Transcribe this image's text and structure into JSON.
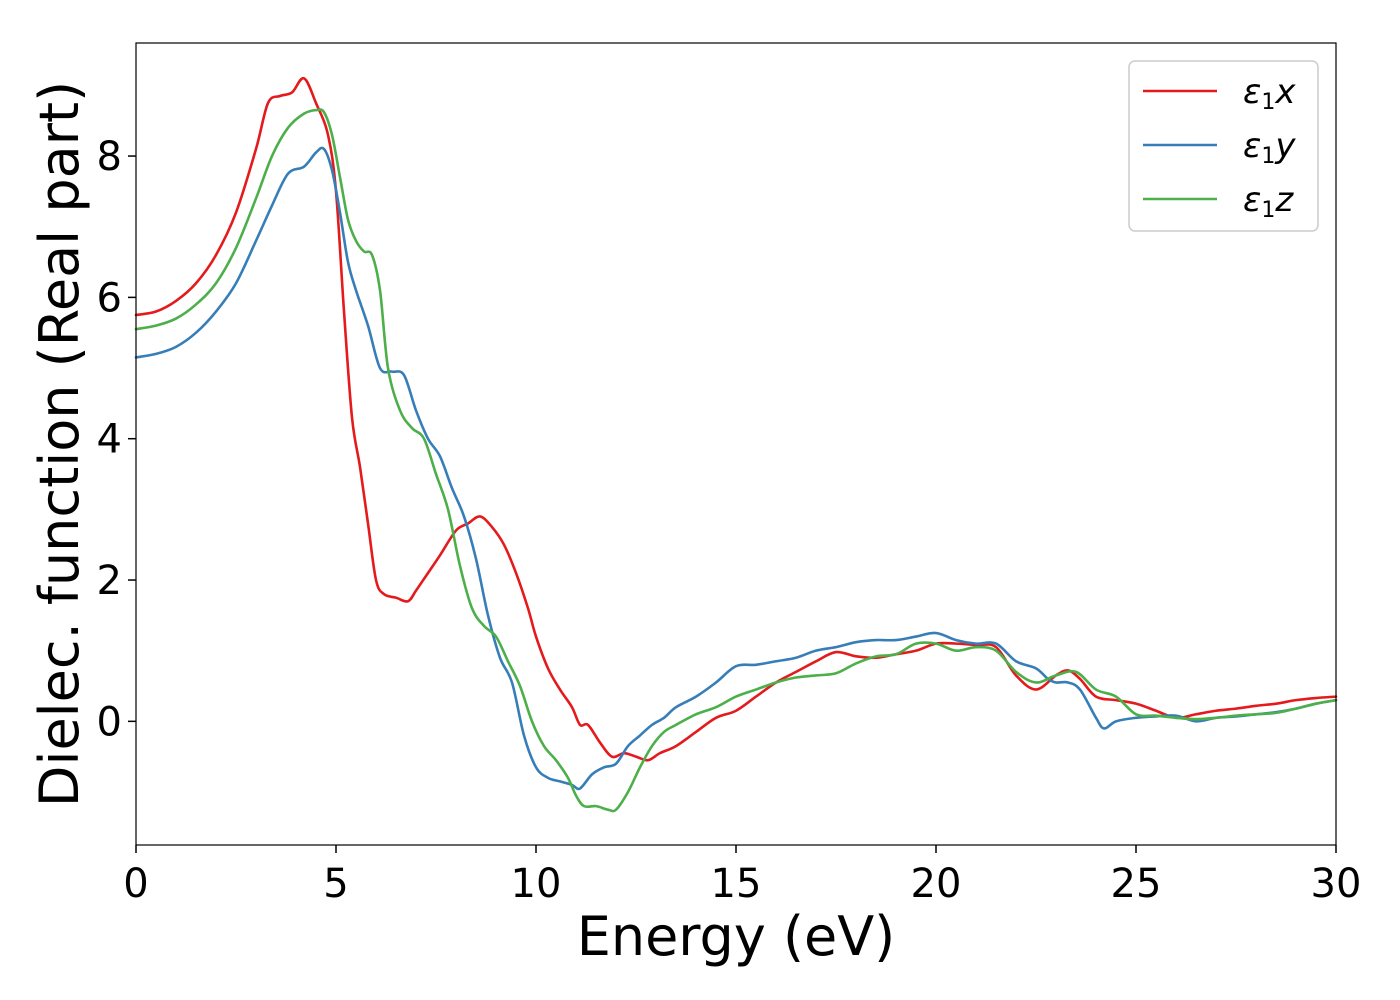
{
  "chart_data": {
    "type": "line",
    "xlabel": "Energy (eV)",
    "ylabel": "Dielec. function (Real part)",
    "xlim": [
      0,
      30
    ],
    "ylim": [
      -1.75,
      9.6
    ],
    "xticks": [
      0,
      5,
      10,
      15,
      20,
      25,
      30
    ],
    "yticks": [
      0,
      2,
      4,
      6,
      8
    ],
    "grid": false,
    "legend_position": "top-right",
    "series": [
      {
        "name": "ε1x",
        "legend_base": "ε",
        "legend_sub": "1",
        "legend_suffix": "x",
        "color": "#e41a1c",
        "x": [
          0,
          0.5,
          1,
          1.5,
          2,
          2.5,
          3,
          3.3,
          3.6,
          3.9,
          4.2,
          4.5,
          4.8,
          5.0,
          5.2,
          5.4,
          5.6,
          5.8,
          6.0,
          6.2,
          6.5,
          6.8,
          7.0,
          7.3,
          7.6,
          8.0,
          8.3,
          8.6,
          8.9,
          9.2,
          9.5,
          9.8,
          10.0,
          10.3,
          10.6,
          10.9,
          11.1,
          11.3,
          11.6,
          11.9,
          12.2,
          12.5,
          12.8,
          13.1,
          13.5,
          14.0,
          14.5,
          15.0,
          15.5,
          16.0,
          16.5,
          17.0,
          17.5,
          18.0,
          18.5,
          19.0,
          19.5,
          20.0,
          20.5,
          21.0,
          21.5,
          22.0,
          22.5,
          23.0,
          23.3,
          23.6,
          24.0,
          24.5,
          25.0,
          25.5,
          26.0,
          26.5,
          27.0,
          27.5,
          28.0,
          28.5,
          29.0,
          29.5,
          30.0
        ],
        "y": [
          5.75,
          5.8,
          5.95,
          6.2,
          6.6,
          7.2,
          8.1,
          8.75,
          8.85,
          8.9,
          9.1,
          8.75,
          8.3,
          7.5,
          5.8,
          4.3,
          3.6,
          2.8,
          2.0,
          1.8,
          1.75,
          1.7,
          1.85,
          2.1,
          2.35,
          2.7,
          2.8,
          2.9,
          2.75,
          2.5,
          2.1,
          1.6,
          1.2,
          0.75,
          0.45,
          0.2,
          -0.05,
          -0.05,
          -0.3,
          -0.5,
          -0.45,
          -0.5,
          -0.55,
          -0.45,
          -0.35,
          -0.15,
          0.05,
          0.15,
          0.35,
          0.55,
          0.7,
          0.85,
          0.98,
          0.92,
          0.9,
          0.95,
          1.0,
          1.1,
          1.1,
          1.08,
          1.05,
          0.65,
          0.45,
          0.65,
          0.72,
          0.6,
          0.35,
          0.3,
          0.25,
          0.15,
          0.05,
          0.1,
          0.15,
          0.18,
          0.22,
          0.25,
          0.3,
          0.33,
          0.35
        ]
      },
      {
        "name": "ε1y",
        "legend_base": "ε",
        "legend_sub": "1",
        "legend_suffix": "y",
        "color": "#377eb8",
        "x": [
          0,
          0.5,
          1,
          1.5,
          2,
          2.5,
          3,
          3.4,
          3.8,
          4.2,
          4.5,
          4.7,
          4.9,
          5.1,
          5.3,
          5.5,
          5.8,
          6.1,
          6.4,
          6.7,
          7.0,
          7.3,
          7.6,
          7.9,
          8.2,
          8.5,
          8.8,
          9.1,
          9.4,
          9.7,
          10.0,
          10.3,
          10.6,
          10.9,
          11.1,
          11.4,
          11.7,
          12.0,
          12.3,
          12.6,
          12.9,
          13.2,
          13.5,
          14.0,
          14.5,
          15.0,
          15.5,
          16.0,
          16.5,
          17.0,
          17.5,
          18.0,
          18.5,
          19.0,
          19.5,
          20.0,
          20.5,
          21.0,
          21.5,
          22.0,
          22.5,
          22.8,
          23.0,
          23.3,
          23.6,
          24.0,
          24.2,
          24.5,
          25.0,
          25.5,
          26.0,
          26.5,
          27.0,
          27.5,
          28.0,
          28.5,
          29.0,
          29.5,
          30.0
        ],
        "y": [
          5.15,
          5.2,
          5.3,
          5.5,
          5.8,
          6.2,
          6.8,
          7.3,
          7.75,
          7.85,
          8.05,
          8.1,
          7.8,
          7.2,
          6.5,
          6.1,
          5.6,
          5.0,
          4.95,
          4.9,
          4.4,
          4.0,
          3.75,
          3.3,
          2.9,
          2.3,
          1.5,
          0.9,
          0.55,
          -0.2,
          -0.65,
          -0.8,
          -0.85,
          -0.9,
          -0.95,
          -0.75,
          -0.65,
          -0.6,
          -0.35,
          -0.2,
          -0.05,
          0.05,
          0.2,
          0.35,
          0.55,
          0.78,
          0.8,
          0.85,
          0.9,
          1.0,
          1.05,
          1.12,
          1.15,
          1.15,
          1.2,
          1.25,
          1.15,
          1.1,
          1.1,
          0.85,
          0.75,
          0.6,
          0.55,
          0.55,
          0.45,
          0.05,
          -0.1,
          0.0,
          0.05,
          0.07,
          0.08,
          0.0,
          0.05,
          0.07,
          0.1,
          0.13,
          0.18,
          0.25,
          0.3
        ]
      },
      {
        "name": "ε1z",
        "legend_base": "ε",
        "legend_sub": "1",
        "legend_suffix": "z",
        "color": "#4daf4a",
        "x": [
          0,
          0.5,
          1,
          1.5,
          2,
          2.5,
          3,
          3.4,
          3.8,
          4.2,
          4.5,
          4.7,
          4.9,
          5.1,
          5.3,
          5.5,
          5.7,
          5.9,
          6.1,
          6.3,
          6.6,
          6.9,
          7.2,
          7.5,
          7.8,
          8.1,
          8.4,
          8.7,
          9.0,
          9.3,
          9.6,
          9.9,
          10.2,
          10.5,
          10.8,
          11.0,
          11.2,
          11.5,
          11.8,
          12.0,
          12.3,
          12.6,
          12.9,
          13.2,
          13.5,
          14.0,
          14.5,
          15.0,
          15.5,
          16.0,
          16.5,
          17.0,
          17.5,
          18.0,
          18.5,
          19.0,
          19.5,
          20.0,
          20.5,
          21.0,
          21.5,
          22.0,
          22.5,
          23.0,
          23.5,
          24.0,
          24.5,
          25.0,
          25.5,
          26.0,
          26.5,
          27.0,
          27.5,
          28.0,
          28.5,
          29.0,
          29.5,
          30.0
        ],
        "y": [
          5.55,
          5.6,
          5.7,
          5.9,
          6.2,
          6.7,
          7.4,
          8.0,
          8.4,
          8.6,
          8.65,
          8.62,
          8.3,
          7.7,
          7.1,
          6.8,
          6.65,
          6.6,
          6.1,
          5.0,
          4.4,
          4.15,
          4.0,
          3.5,
          3.0,
          2.2,
          1.6,
          1.35,
          1.2,
          0.85,
          0.5,
          0.0,
          -0.35,
          -0.55,
          -0.8,
          -1.05,
          -1.2,
          -1.2,
          -1.25,
          -1.25,
          -1.0,
          -0.65,
          -0.35,
          -0.15,
          -0.05,
          0.1,
          0.2,
          0.35,
          0.45,
          0.55,
          0.62,
          0.65,
          0.68,
          0.82,
          0.92,
          0.95,
          1.1,
          1.1,
          1.0,
          1.05,
          1.0,
          0.7,
          0.55,
          0.65,
          0.7,
          0.45,
          0.35,
          0.1,
          0.08,
          0.05,
          0.03,
          0.05,
          0.08,
          0.1,
          0.12,
          0.18,
          0.25,
          0.3
        ]
      }
    ]
  }
}
